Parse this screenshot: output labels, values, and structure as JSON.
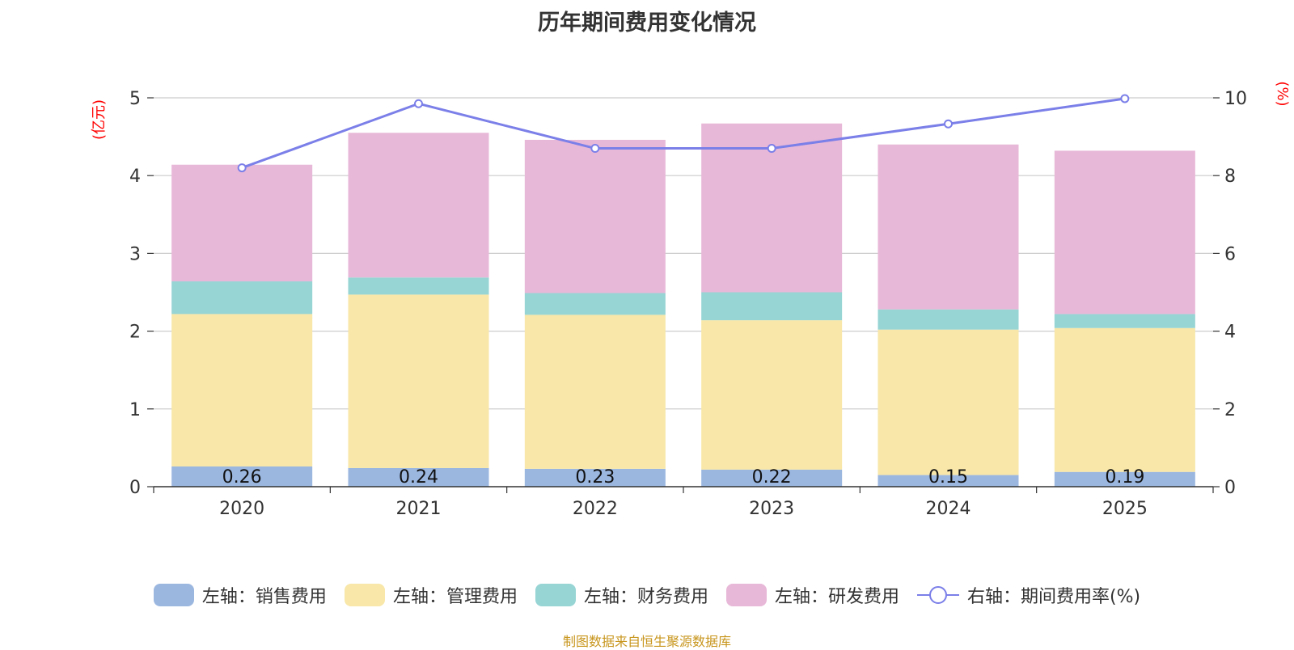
{
  "chart_data": {
    "type": "bar",
    "title": "历年期间费用变化情况",
    "categories": [
      "2020",
      "2021",
      "2022",
      "2023",
      "2024",
      "2025"
    ],
    "series": [
      {
        "name": "左轴：销售费用",
        "axis": "left",
        "color": "#9bb7e0",
        "values": [
          0.26,
          0.24,
          0.23,
          0.22,
          0.15,
          0.19
        ],
        "labels": [
          "0.26",
          "0.24",
          "0.23",
          "0.22",
          "0.15",
          "0.19"
        ]
      },
      {
        "name": "左轴：管理费用",
        "axis": "left",
        "color": "#f8e7a8",
        "values": [
          1.96,
          2.23,
          1.98,
          1.92,
          1.87,
          1.85
        ]
      },
      {
        "name": "左轴：财务费用",
        "axis": "left",
        "color": "#97d4d4",
        "values": [
          0.42,
          0.22,
          0.28,
          0.36,
          0.26,
          0.18
        ]
      },
      {
        "name": "左轴：研发费用",
        "axis": "left",
        "color": "#e8b8d8",
        "values": [
          1.5,
          1.86,
          1.97,
          2.17,
          2.12,
          2.1
        ]
      },
      {
        "name": "右轴：期间费用率(%)",
        "axis": "right",
        "type": "line",
        "color": "#7b7fe8",
        "values": [
          8.2,
          9.85,
          8.7,
          8.7,
          9.33,
          9.98
        ]
      }
    ],
    "yleft": {
      "label": "(亿元)",
      "lim": [
        0,
        5
      ],
      "ticks": [
        "0",
        "1",
        "2",
        "3",
        "4",
        "5"
      ]
    },
    "yright": {
      "label": "(%)",
      "lim": [
        0,
        10
      ],
      "ticks": [
        "0",
        "2",
        "4",
        "6",
        "8",
        "10"
      ]
    },
    "grid": true,
    "legend": "bottom"
  },
  "footer": "制图数据来自恒生聚源数据库"
}
